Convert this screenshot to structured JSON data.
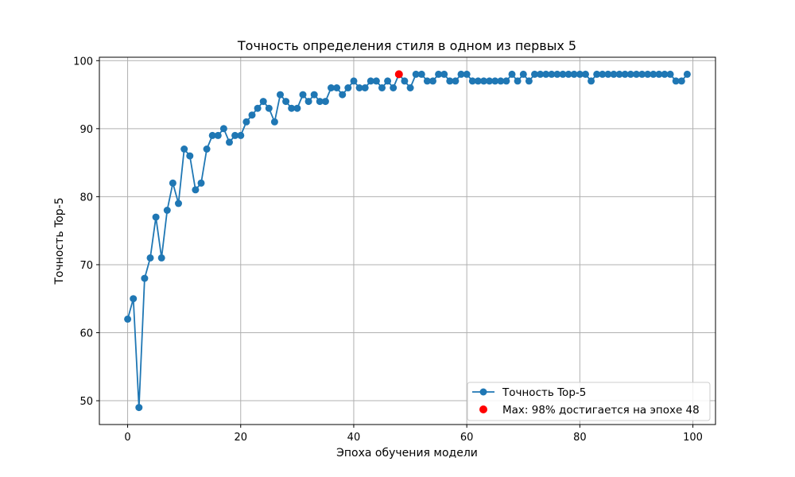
{
  "chart_data": {
    "type": "line",
    "title": "Точность определения стиля в одном из первых 5",
    "xlabel": "Эпоха обучения модели",
    "ylabel": "Точность Top-5",
    "xlim": [
      -5,
      104
    ],
    "ylim": [
      46.5,
      100.5
    ],
    "xticks": [
      0,
      20,
      40,
      60,
      80,
      100
    ],
    "yticks": [
      50,
      60,
      70,
      80,
      90,
      100
    ],
    "grid": true,
    "legend_position": "bottom-right",
    "colors": {
      "series": "#1f77b4",
      "max_marker": "#ff0000",
      "grid": "#b0b0b0"
    },
    "series": [
      {
        "name": "Точность Top-5",
        "x": [
          0,
          1,
          2,
          3,
          4,
          5,
          6,
          7,
          8,
          9,
          10,
          11,
          12,
          13,
          14,
          15,
          16,
          17,
          18,
          19,
          20,
          21,
          22,
          23,
          24,
          25,
          26,
          27,
          28,
          29,
          30,
          31,
          32,
          33,
          34,
          35,
          36,
          37,
          38,
          39,
          40,
          41,
          42,
          43,
          44,
          45,
          46,
          47,
          48,
          49,
          50,
          51,
          52,
          53,
          54,
          55,
          56,
          57,
          58,
          59,
          60,
          61,
          62,
          63,
          64,
          65,
          66,
          67,
          68,
          69,
          70,
          71,
          72,
          73,
          74,
          75,
          76,
          77,
          78,
          79,
          80,
          81,
          82,
          83,
          84,
          85,
          86,
          87,
          88,
          89,
          90,
          91,
          92,
          93,
          94,
          95,
          96,
          97,
          98,
          99
        ],
        "y": [
          62,
          65,
          49,
          68,
          71,
          77,
          71,
          78,
          82,
          79,
          87,
          86,
          81,
          82,
          87,
          89,
          89,
          90,
          88,
          89,
          89,
          91,
          92,
          93,
          94,
          93,
          91,
          95,
          94,
          93,
          93,
          95,
          94,
          95,
          94,
          94,
          96,
          96,
          95,
          96,
          97,
          96,
          96,
          97,
          97,
          96,
          97,
          96,
          98,
          97,
          96,
          98,
          98,
          97,
          97,
          98,
          98,
          97,
          97,
          98,
          98,
          97,
          97,
          97,
          97,
          97,
          97,
          97,
          98,
          97,
          98,
          97,
          98,
          98,
          98,
          98,
          98,
          98,
          98,
          98,
          98,
          98,
          97,
          98,
          98,
          98,
          98,
          98,
          98,
          98,
          98,
          98,
          98,
          98,
          98,
          98,
          98,
          97,
          97,
          98
        ]
      }
    ],
    "max_point": {
      "label": "Max: 98% достигается на эпохе 48",
      "x": 48,
      "y": 98
    }
  }
}
